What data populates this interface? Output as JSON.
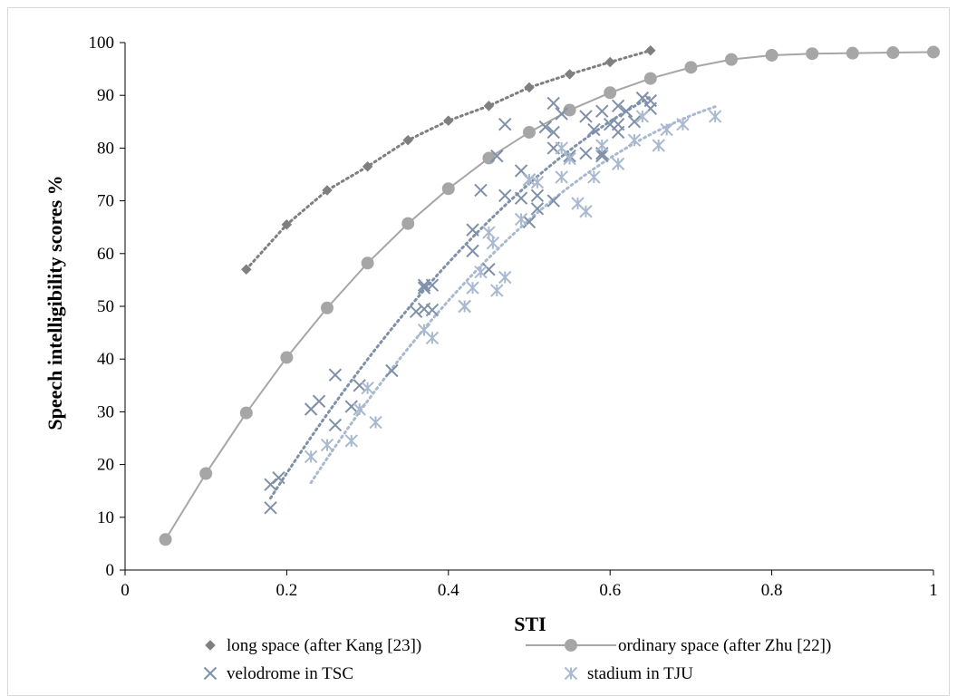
{
  "chart_data": {
    "type": "scatter",
    "title": "",
    "xlabel": "STI",
    "ylabel": "Speech intelligibility scores %",
    "xlim": [
      0,
      1
    ],
    "ylim": [
      0,
      100
    ],
    "x_ticks": [
      "0",
      "0.2",
      "0.4",
      "0.6",
      "0.8",
      "1"
    ],
    "y_ticks": [
      "0",
      "10",
      "20",
      "30",
      "40",
      "50",
      "60",
      "70",
      "80",
      "90",
      "100"
    ],
    "grid": false,
    "legend_position": "bottom",
    "series": [
      {
        "name": "long space (after Kang [23])",
        "marker": "diamond",
        "color": "#7f7f7f",
        "trendline": "dotted",
        "points": [
          [
            0.15,
            57
          ],
          [
            0.2,
            65.5
          ],
          [
            0.25,
            72
          ],
          [
            0.3,
            76.5
          ],
          [
            0.35,
            81.5
          ],
          [
            0.4,
            85.2
          ],
          [
            0.45,
            88
          ],
          [
            0.5,
            91.5
          ],
          [
            0.55,
            94
          ],
          [
            0.6,
            96.3
          ],
          [
            0.65,
            98.5
          ]
        ]
      },
      {
        "name": "ordinary space (after Zhu [22])",
        "marker": "circle-line",
        "color": "#a6a6a6",
        "trendline": "solid",
        "points": [
          [
            0.05,
            5.8
          ],
          [
            0.1,
            18.3
          ],
          [
            0.15,
            29.8
          ],
          [
            0.2,
            40.3
          ],
          [
            0.25,
            49.7
          ],
          [
            0.3,
            58.2
          ],
          [
            0.35,
            65.7
          ],
          [
            0.4,
            72.3
          ],
          [
            0.45,
            78.1
          ],
          [
            0.5,
            83
          ],
          [
            0.55,
            87.2
          ],
          [
            0.6,
            90.5
          ],
          [
            0.65,
            93.2
          ],
          [
            0.7,
            95.3
          ],
          [
            0.75,
            96.8
          ],
          [
            0.8,
            97.6
          ],
          [
            0.85,
            97.9
          ],
          [
            0.9,
            98
          ],
          [
            0.95,
            98.1
          ],
          [
            1.0,
            98.2
          ]
        ]
      },
      {
        "name": "velodrome in TSC",
        "marker": "x",
        "color": "#7f90a9",
        "trendline": "dotted",
        "points": [
          [
            0.18,
            11.8
          ],
          [
            0.18,
            16.2
          ],
          [
            0.19,
            17.5
          ],
          [
            0.23,
            30.5
          ],
          [
            0.24,
            32
          ],
          [
            0.26,
            27.5
          ],
          [
            0.26,
            37
          ],
          [
            0.28,
            31
          ],
          [
            0.29,
            35
          ],
          [
            0.33,
            37.8
          ],
          [
            0.36,
            49
          ],
          [
            0.37,
            49.5
          ],
          [
            0.37,
            53.5
          ],
          [
            0.37,
            54
          ],
          [
            0.38,
            54
          ],
          [
            0.38,
            49.3
          ],
          [
            0.42,
            50
          ],
          [
            0.43,
            60.5
          ],
          [
            0.43,
            64.5
          ],
          [
            0.44,
            72
          ],
          [
            0.45,
            57
          ],
          [
            0.46,
            78.5
          ],
          [
            0.47,
            71
          ],
          [
            0.47,
            84.5
          ],
          [
            0.49,
            75.7
          ],
          [
            0.49,
            70.5
          ],
          [
            0.5,
            74
          ],
          [
            0.5,
            66
          ],
          [
            0.51,
            71
          ],
          [
            0.51,
            68.5
          ],
          [
            0.52,
            84
          ],
          [
            0.53,
            88.5
          ],
          [
            0.53,
            83
          ],
          [
            0.53,
            80
          ],
          [
            0.53,
            70
          ],
          [
            0.54,
            86.5
          ],
          [
            0.55,
            78.5
          ],
          [
            0.57,
            79
          ],
          [
            0.57,
            86
          ],
          [
            0.58,
            83.5
          ],
          [
            0.59,
            87
          ],
          [
            0.59,
            79
          ],
          [
            0.59,
            78.5
          ],
          [
            0.6,
            84.5
          ],
          [
            0.61,
            84.5
          ],
          [
            0.61,
            83
          ],
          [
            0.61,
            88
          ],
          [
            0.62,
            87
          ],
          [
            0.63,
            85
          ],
          [
            0.64,
            89.5
          ],
          [
            0.65,
            89
          ],
          [
            0.65,
            87.5
          ]
        ]
      },
      {
        "name": "stadium in TJU",
        "marker": "asterisk",
        "color": "#a9b9cf",
        "trendline": "dotted",
        "points": [
          [
            0.23,
            21.5
          ],
          [
            0.25,
            23.7
          ],
          [
            0.28,
            24.5
          ],
          [
            0.29,
            30.5
          ],
          [
            0.3,
            34.5
          ],
          [
            0.31,
            28
          ],
          [
            0.37,
            45.5
          ],
          [
            0.38,
            44
          ],
          [
            0.42,
            50
          ],
          [
            0.43,
            53.5
          ],
          [
            0.44,
            56.5
          ],
          [
            0.45,
            64
          ],
          [
            0.455,
            62
          ],
          [
            0.46,
            53
          ],
          [
            0.47,
            55.5
          ],
          [
            0.49,
            66.5
          ],
          [
            0.5,
            74
          ],
          [
            0.51,
            73.5
          ],
          [
            0.54,
            80
          ],
          [
            0.54,
            74.5
          ],
          [
            0.55,
            78
          ],
          [
            0.56,
            69.5
          ],
          [
            0.57,
            68
          ],
          [
            0.58,
            74.5
          ],
          [
            0.59,
            80.5
          ],
          [
            0.61,
            77
          ],
          [
            0.63,
            81.5
          ],
          [
            0.64,
            86
          ],
          [
            0.66,
            80.5
          ],
          [
            0.67,
            83.5
          ],
          [
            0.69,
            84.5
          ],
          [
            0.73,
            86
          ]
        ]
      }
    ]
  }
}
